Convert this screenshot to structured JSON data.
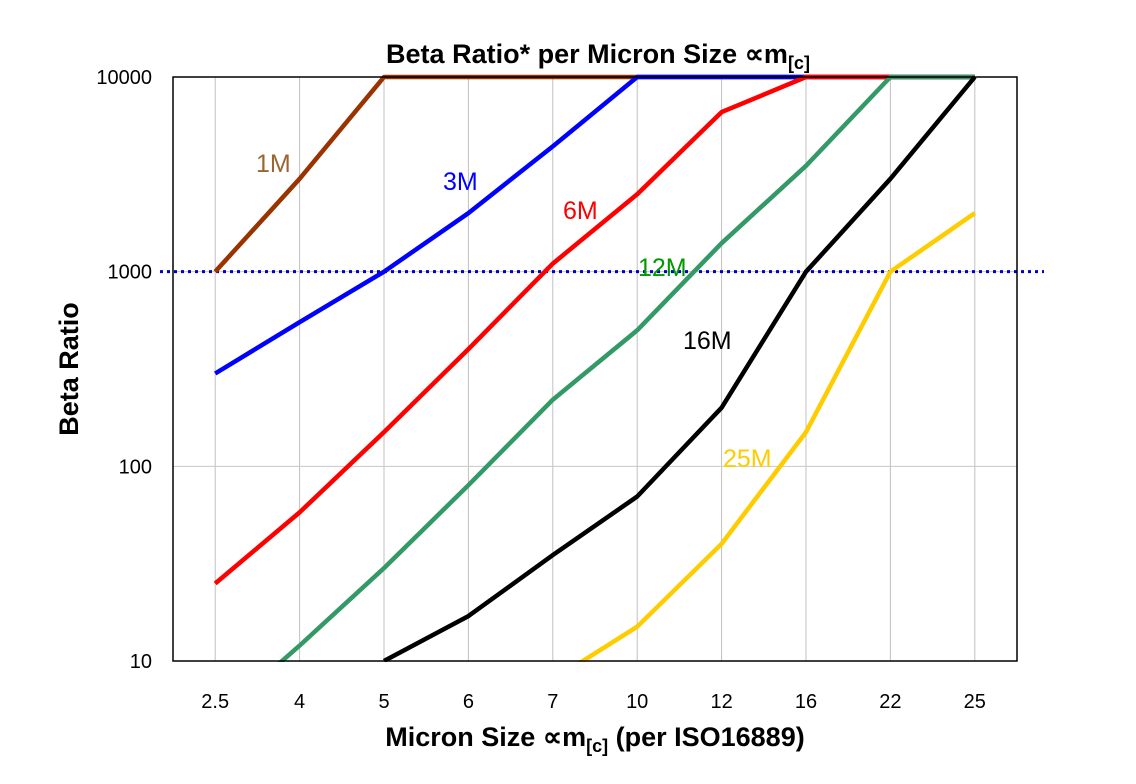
{
  "chart_data": {
    "type": "line",
    "title": "Beta Ratio* per Micron Size ∝m",
    "title_subscript": "[c]",
    "xlabel": "Micron Size ∝m",
    "xlabel_subscript": "[c]",
    "xlabel_suffix": " (per ISO16889)",
    "ylabel": "Beta Ratio",
    "y_scale": "log",
    "ylim": [
      10,
      10000
    ],
    "y_ticks": [
      "10000",
      "1000",
      "100",
      "10"
    ],
    "y_tick_values": [
      10000,
      1000,
      100,
      10
    ],
    "categories": [
      "2.5",
      "4",
      "5",
      "6",
      "7",
      "10",
      "12",
      "16",
      "22",
      "25"
    ],
    "grid": "vertical and horizontal at decades",
    "reference_line": {
      "y": 1000,
      "color": "#0000CC",
      "style": "dotted"
    },
    "series": [
      {
        "name": "1M",
        "color": "#993300",
        "label_color": "#996633",
        "values": [
          1000,
          3000,
          10000,
          10000,
          10000,
          10000,
          10000,
          10000,
          10000,
          10000
        ]
      },
      {
        "name": "3M",
        "color": "#0000FF",
        "label_color": "#0000FF",
        "values": [
          300,
          550,
          1000,
          2000,
          4400,
          10000,
          10000,
          10000,
          10000,
          10000
        ]
      },
      {
        "name": "6M",
        "color": "#FF0000",
        "label_color": "#FF0000",
        "values": [
          25,
          58,
          150,
          400,
          1100,
          2500,
          6600,
          10000,
          10000,
          10000
        ]
      },
      {
        "name": "12M",
        "color": "#339966",
        "label_color": "#009900",
        "values": [
          5,
          12,
          30,
          80,
          220,
          500,
          1400,
          3500,
          10000,
          10000
        ]
      },
      {
        "name": "16M",
        "color": "#000000",
        "label_color": "#000000",
        "values": [
          null,
          null,
          10,
          17,
          35,
          70,
          200,
          1000,
          3000,
          10000
        ]
      },
      {
        "name": "25M",
        "color": "#FFCC00",
        "label_color": "#FFCC00",
        "values": [
          null,
          null,
          null,
          null,
          8,
          15,
          40,
          150,
          1000,
          2000
        ]
      }
    ]
  }
}
